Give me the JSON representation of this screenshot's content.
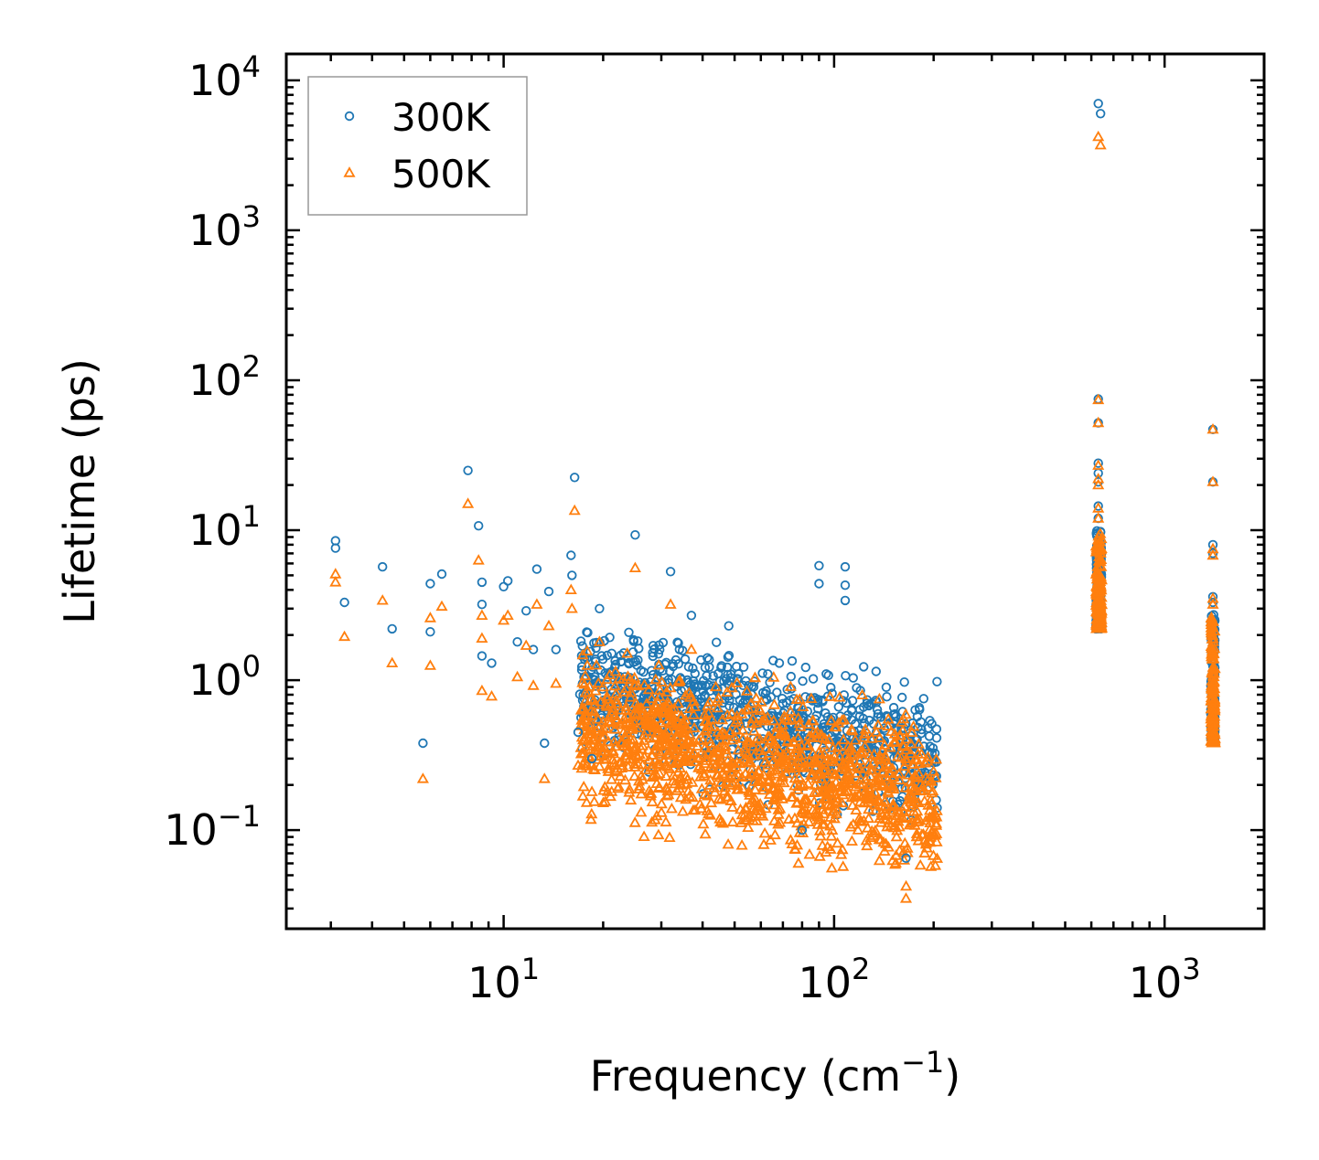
{
  "chart_data": {
    "type": "scatter",
    "xscale": "log",
    "yscale": "log",
    "xlim": [
      2.2,
      2000
    ],
    "ylim": [
      0.022,
      15000
    ],
    "xlabel": {
      "main": "Frequency (cm",
      "sup": "−1",
      "end": ")"
    },
    "ylabel": "Lifetime (ps)",
    "xticks": [
      {
        "value": 10,
        "base": "10",
        "exp": "1"
      },
      {
        "value": 100,
        "base": "10",
        "exp": "2"
      },
      {
        "value": 1000,
        "base": "10",
        "exp": "3"
      }
    ],
    "yticks": [
      {
        "value": 0.1,
        "base": "10",
        "exp": "−1"
      },
      {
        "value": 1,
        "base": "10",
        "exp": "0"
      },
      {
        "value": 10,
        "base": "10",
        "exp": "1"
      },
      {
        "value": 100,
        "base": "10",
        "exp": "2"
      },
      {
        "value": 1000,
        "base": "10",
        "exp": "3"
      },
      {
        "value": 10000,
        "base": "10",
        "exp": "4"
      }
    ],
    "legend": {
      "position": "top-left"
    },
    "series": [
      {
        "name": "300K",
        "marker": "circle",
        "color": "#1f77b4",
        "points": [
          [
            3.1,
            8.5
          ],
          [
            3.1,
            7.6
          ],
          [
            3.3,
            3.3
          ],
          [
            4.3,
            5.7
          ],
          [
            4.6,
            2.2
          ],
          [
            5.7,
            0.38
          ],
          [
            6.0,
            4.4
          ],
          [
            6.0,
            2.1
          ],
          [
            6.5,
            5.1
          ],
          [
            7.8,
            25
          ],
          [
            8.4,
            10.7
          ],
          [
            8.6,
            4.5
          ],
          [
            8.6,
            3.2
          ],
          [
            8.6,
            1.45
          ],
          [
            9.2,
            1.3
          ],
          [
            10.0,
            4.2
          ],
          [
            10.3,
            4.6
          ],
          [
            11.0,
            1.8
          ],
          [
            11.7,
            2.9
          ],
          [
            12.3,
            1.6
          ],
          [
            12.6,
            5.5
          ],
          [
            13.3,
            0.38
          ],
          [
            13.7,
            3.9
          ],
          [
            14.4,
            1.6
          ],
          [
            16.0,
            6.8
          ],
          [
            16.1,
            5.0
          ],
          [
            16.4,
            22.5
          ],
          [
            16.8,
            0.45
          ],
          [
            18.5,
            0.3
          ],
          [
            19.5,
            3.0
          ],
          [
            25.0,
            9.3
          ],
          [
            32.0,
            5.3
          ],
          [
            37.0,
            2.7
          ],
          [
            48.0,
            2.3
          ],
          [
            63.0,
            1.1
          ],
          [
            90.0,
            5.8
          ],
          [
            90.0,
            4.4
          ],
          [
            108.0,
            5.7
          ],
          [
            108.0,
            4.3
          ],
          [
            108.0,
            3.4
          ],
          [
            80.0,
            0.1
          ],
          [
            165.0,
            0.065
          ],
          [
            630,
            7000
          ],
          [
            640,
            6000
          ],
          [
            630,
            75
          ],
          [
            630,
            52
          ],
          [
            630,
            28
          ],
          [
            630,
            24
          ],
          [
            630,
            21
          ],
          [
            630,
            14.5
          ],
          [
            630,
            12
          ],
          [
            1400,
            47
          ],
          [
            1400,
            21
          ],
          [
            1400,
            8
          ],
          [
            1400,
            7
          ],
          [
            1400,
            3.6
          ],
          [
            1400,
            3.3
          ]
        ]
      },
      {
        "name": "500K",
        "marker": "triangle",
        "color": "#ff7f0e",
        "points": [
          [
            3.1,
            5.1
          ],
          [
            3.1,
            4.5
          ],
          [
            3.3,
            1.95
          ],
          [
            4.3,
            3.4
          ],
          [
            4.6,
            1.3
          ],
          [
            5.7,
            0.22
          ],
          [
            6.0,
            2.6
          ],
          [
            6.0,
            1.25
          ],
          [
            6.5,
            3.1
          ],
          [
            7.8,
            15
          ],
          [
            8.4,
            6.3
          ],
          [
            8.6,
            2.7
          ],
          [
            8.6,
            1.9
          ],
          [
            8.6,
            0.85
          ],
          [
            9.2,
            0.78
          ],
          [
            10.0,
            2.5
          ],
          [
            10.3,
            2.7
          ],
          [
            11.0,
            1.05
          ],
          [
            11.7,
            1.7
          ],
          [
            12.3,
            0.92
          ],
          [
            12.6,
            3.2
          ],
          [
            13.3,
            0.22
          ],
          [
            13.7,
            2.3
          ],
          [
            14.4,
            0.95
          ],
          [
            16.0,
            4.0
          ],
          [
            16.1,
            3.0
          ],
          [
            16.4,
            13.5
          ],
          [
            16.8,
            0.27
          ],
          [
            18.5,
            0.18
          ],
          [
            19.5,
            1.8
          ],
          [
            25.0,
            5.6
          ],
          [
            32.0,
            3.2
          ],
          [
            37.0,
            1.6
          ],
          [
            78.0,
            0.06
          ],
          [
            165.0,
            0.035
          ],
          [
            630,
            4200
          ],
          [
            640,
            3700
          ],
          [
            630,
            74
          ],
          [
            630,
            52
          ],
          [
            630,
            27
          ],
          [
            630,
            22
          ],
          [
            630,
            20
          ],
          [
            630,
            14
          ],
          [
            630,
            12
          ],
          [
            1400,
            47
          ],
          [
            1400,
            21
          ],
          [
            1400,
            7.5
          ],
          [
            1400,
            6.8
          ],
          [
            1400,
            3.5
          ],
          [
            1400,
            3.2
          ]
        ]
      }
    ],
    "dense_regions": [
      {
        "series": "300K",
        "xrange": [
          17,
          205
        ],
        "center_log_y": -0.25,
        "spread_log_y": 0.6,
        "count": 1000
      },
      {
        "series": "500K",
        "xrange": [
          17,
          205
        ],
        "center_log_y": -0.55,
        "spread_log_y": 0.7,
        "count": 1300
      },
      {
        "series": "300K",
        "xrange": [
          620,
          645
        ],
        "yrange": [
          2.2,
          10
        ],
        "count": 160
      },
      {
        "series": "500K",
        "xrange": [
          620,
          645
        ],
        "yrange": [
          2.2,
          9.5
        ],
        "count": 160
      },
      {
        "series": "300K",
        "xrange": [
          1380,
          1420
        ],
        "yrange": [
          0.4,
          2.8
        ],
        "count": 160
      },
      {
        "series": "500K",
        "xrange": [
          1380,
          1420
        ],
        "yrange": [
          0.38,
          2.7
        ],
        "count": 160
      }
    ]
  }
}
